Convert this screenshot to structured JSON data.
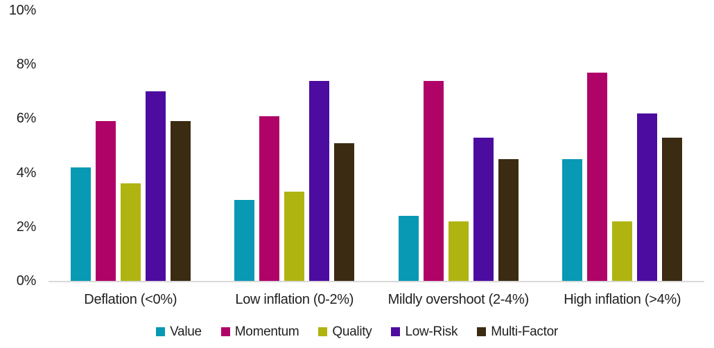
{
  "chart_data": {
    "type": "bar",
    "title": "",
    "xlabel": "",
    "ylabel": "",
    "ylim": [
      0,
      10
    ],
    "yticks": [
      "0%",
      "2%",
      "4%",
      "6%",
      "8%",
      "10%"
    ],
    "grid": false,
    "legend_position": "bottom",
    "categories": [
      "Deflation (<0%)",
      "Low inflation (0-2%)",
      "Mildly overshoot (2-4%)",
      "High inflation (>4%)"
    ],
    "series": [
      {
        "name": "Value",
        "color": "#0899B4",
        "values": [
          4.2,
          3.0,
          2.4,
          4.5
        ]
      },
      {
        "name": "Momentum",
        "color": "#B00368",
        "values": [
          5.9,
          6.1,
          7.4,
          7.7
        ]
      },
      {
        "name": "Quality",
        "color": "#B0B411",
        "values": [
          3.6,
          3.3,
          2.2,
          2.2
        ]
      },
      {
        "name": "Low-Risk",
        "color": "#4C0CA0",
        "values": [
          7.0,
          7.4,
          5.3,
          6.2
        ]
      },
      {
        "name": "Multi-Factor",
        "color": "#3B2B12",
        "values": [
          5.9,
          5.1,
          4.5,
          5.3
        ]
      }
    ],
    "colors": {
      "axis_line": "#D9D9D9",
      "text": "#1F1F1F",
      "background": "#FFFFFF"
    }
  }
}
